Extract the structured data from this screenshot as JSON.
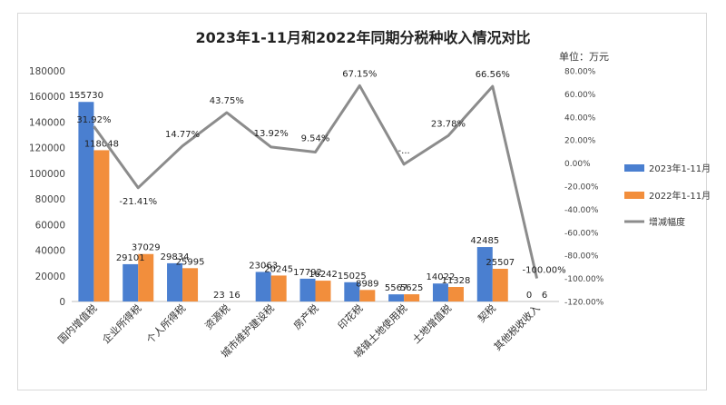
{
  "chart_data": {
    "type": "bar",
    "title": "2023年1-11月和2022年同期分税种收入情况对比",
    "unit_label": "单位：万元",
    "categories": [
      "国内增值税",
      "企业所得税",
      "个人所得税",
      "资源税",
      "城市维护建设税",
      "房产税",
      "印花税",
      "城镇土地使用税",
      "土地增值税",
      "契税",
      "其他税收收入"
    ],
    "series": [
      {
        "name": "2023年1-11月",
        "type": "bar",
        "axis": "left",
        "color": "#4a7fd0",
        "values": [
          155730,
          29101,
          29834,
          23,
          23063,
          17792,
          15025,
          5567,
          14022,
          42485,
          0
        ]
      },
      {
        "name": "2022年1-11月",
        "type": "bar",
        "axis": "left",
        "color": "#f28e3c",
        "values": [
          118048,
          37029,
          25995,
          16,
          20245,
          16242,
          8989,
          5625,
          11328,
          25507,
          6
        ]
      },
      {
        "name": "增减幅度",
        "type": "line",
        "axis": "right",
        "color": "#8c8c8c",
        "values": [
          31.92,
          -21.41,
          14.77,
          43.75,
          13.92,
          9.54,
          67.15,
          null,
          23.78,
          66.56,
          -100.0
        ]
      }
    ],
    "bar_labels_2023": [
      "155730",
      "29101",
      "29834",
      "23",
      "23063",
      "17792",
      "15025",
      "5567",
      "14022",
      "42485",
      "0"
    ],
    "bar_labels_2022": [
      "118048",
      "37029",
      "25995",
      "16",
      "20245",
      "16242",
      "8989",
      "5625",
      "11328",
      "25507",
      "6"
    ],
    "line_labels": [
      "31.92%",
      "-21.41%",
      "14.77%",
      "43.75%",
      "13.92%",
      "9.54%",
      "67.15%",
      "-...",
      "23.78%",
      "66.56%",
      "-100.00%"
    ],
    "line_plot_values": [
      31.92,
      -21.41,
      14.77,
      43.75,
      13.92,
      9.54,
      67.15,
      -1.0,
      23.78,
      66.56,
      -100.0
    ],
    "ylim_left": [
      0,
      180000
    ],
    "ylim_right": [
      -120,
      80
    ],
    "left_ticks": [
      "0",
      "20000",
      "40000",
      "60000",
      "80000",
      "100000",
      "120000",
      "140000",
      "160000",
      "180000"
    ],
    "right_ticks": [
      "-120.00%",
      "-100.00%",
      "-80.00%",
      "-60.00%",
      "-40.00%",
      "-20.00%",
      "0.00%",
      "20.00%",
      "40.00%",
      "60.00%",
      "80.00%"
    ],
    "legend_position": "right",
    "grid": false
  }
}
